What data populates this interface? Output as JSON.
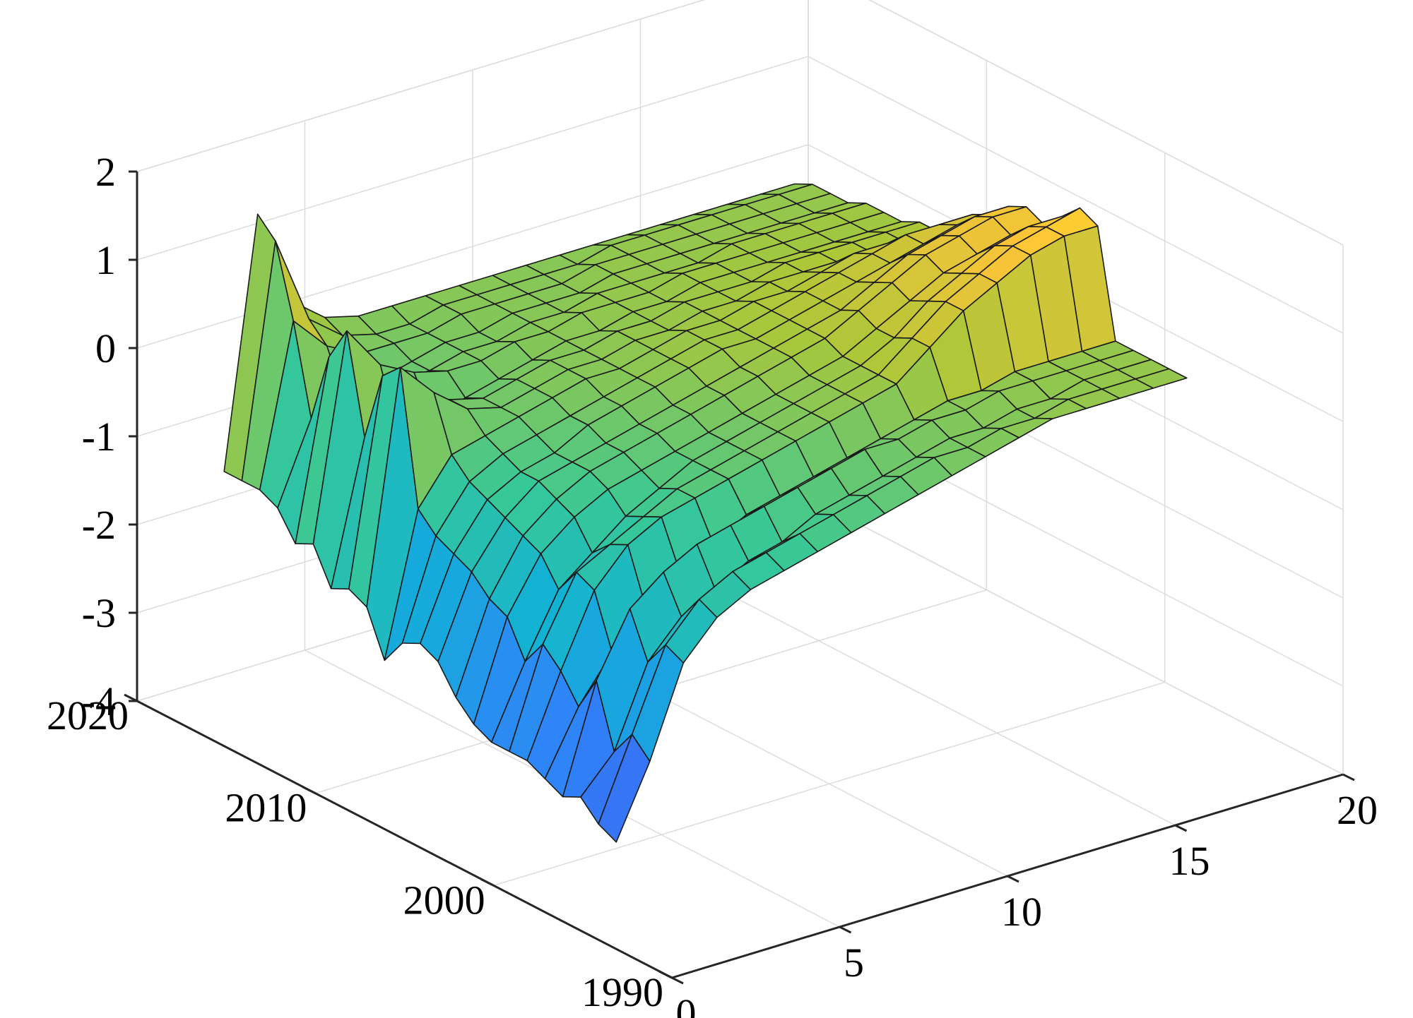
{
  "chart_data": {
    "type": "surface",
    "title": "",
    "xlabel": "",
    "ylabel": "",
    "zlabel": "",
    "xlim": [
      0,
      20
    ],
    "ylim": [
      1990,
      2020
    ],
    "zlim": [
      -4,
      2
    ],
    "grid": true,
    "colormap": "parula",
    "x_ticks": [
      "0",
      "5",
      "10",
      "15",
      "20"
    ],
    "y_ticks": [
      "1990",
      "2000",
      "2010",
      "2020"
    ],
    "z_ticks": [
      "-4",
      "-3",
      "-2",
      "-1",
      "0",
      "1",
      "2"
    ],
    "horizons": [
      1,
      2,
      3,
      4,
      5,
      6,
      7,
      8,
      9,
      10,
      11,
      12,
      13,
      14,
      15,
      16,
      17,
      18
    ],
    "years": [
      1995,
      1996,
      1997,
      1998,
      1999,
      2000,
      2001,
      2002,
      2003,
      2004,
      2005,
      2006,
      2007,
      2008,
      2009,
      2010,
      2011,
      2012,
      2013,
      2014,
      2015,
      2016,
      2017
    ],
    "z": [
      [
        -3.1,
        -2.3,
        -1.3,
        -0.9,
        -0.7,
        -0.6,
        -0.5,
        -0.4,
        -0.3,
        -0.2,
        -0.1,
        0.0,
        0.1,
        0.2,
        0.2,
        0.2,
        0.2,
        0.2
      ],
      [
        -3.0,
        -2.1,
        -1.2,
        -0.8,
        -0.6,
        -0.5,
        -0.4,
        -0.3,
        -0.2,
        -0.1,
        0.0,
        0.0,
        0.1,
        0.1,
        0.2,
        0.2,
        0.2,
        0.2
      ],
      [
        -2.8,
        -2.4,
        -1.5,
        -1.1,
        -0.9,
        -0.7,
        -0.6,
        -0.4,
        -0.3,
        -0.2,
        -0.1,
        0.0,
        0.0,
        0.1,
        0.1,
        0.2,
        0.2,
        0.2
      ],
      [
        -2.9,
        -1.7,
        -1.0,
        -0.7,
        -0.5,
        -0.4,
        -0.3,
        -0.2,
        -0.1,
        0.0,
        0.0,
        0.1,
        0.1,
        0.2,
        0.2,
        0.2,
        0.2,
        0.2
      ],
      [
        -2.8,
        -2.1,
        -1.6,
        -1.2,
        -0.9,
        -0.7,
        -0.5,
        -0.4,
        -0.3,
        -0.2,
        -0.1,
        0.0,
        0.1,
        0.1,
        0.2,
        0.2,
        0.2,
        0.2
      ],
      [
        -2.7,
        -1.8,
        -1.0,
        -0.6,
        -0.4,
        -0.3,
        -0.2,
        -0.1,
        0.0,
        0.1,
        0.2,
        0.3,
        0.6,
        0.9,
        1.1,
        1.3,
        1.4,
        1.4
      ],
      [
        -2.7,
        -1.6,
        -0.9,
        -0.7,
        -0.5,
        -0.3,
        -0.2,
        -0.1,
        0.0,
        0.1,
        0.2,
        0.3,
        0.6,
        0.9,
        1.1,
        1.3,
        1.4,
        1.5
      ],
      [
        -2.7,
        -1.9,
        -1.2,
        -0.9,
        -0.6,
        -0.4,
        -0.2,
        -0.1,
        0.0,
        0.1,
        0.2,
        0.3,
        0.5,
        0.8,
        1.0,
        1.2,
        1.3,
        1.3
      ],
      [
        -2.6,
        -1.5,
        -0.9,
        -0.6,
        -0.4,
        -0.3,
        -0.2,
        -0.1,
        0.0,
        0.1,
        0.2,
        0.3,
        0.5,
        0.7,
        0.9,
        1.0,
        1.1,
        1.1
      ],
      [
        -2.4,
        -1.4,
        -0.8,
        -0.5,
        -0.3,
        -0.2,
        -0.1,
        0.0,
        0.1,
        0.2,
        0.3,
        0.4,
        0.6,
        0.8,
        1.0,
        1.1,
        1.2,
        1.2
      ],
      [
        -2.1,
        -1.2,
        -0.7,
        -0.4,
        -0.3,
        -0.2,
        -0.1,
        0.0,
        0.1,
        0.2,
        0.3,
        0.4,
        0.5,
        0.7,
        0.9,
        1.0,
        1.1,
        1.1
      ],
      [
        -2.0,
        -1.1,
        -0.6,
        -0.4,
        -0.3,
        -0.1,
        0.0,
        0.1,
        0.2,
        0.3,
        0.3,
        0.4,
        0.5,
        0.6,
        0.7,
        0.8,
        0.9,
        0.9
      ],
      [
        -2.1,
        -1.0,
        -0.5,
        -0.3,
        -0.2,
        -0.1,
        0.0,
        0.1,
        0.2,
        0.3,
        0.3,
        0.4,
        0.5,
        0.6,
        0.7,
        0.8,
        0.8,
        0.8
      ],
      [
        -2.4,
        -0.8,
        -0.3,
        -0.2,
        -0.1,
        0.0,
        0.1,
        0.1,
        0.2,
        0.3,
        0.3,
        0.4,
        0.4,
        0.5,
        0.6,
        0.6,
        0.6,
        0.6
      ],
      [
        -1.9,
        0.7,
        0.3,
        0.0,
        -0.1,
        0.0,
        0.1,
        0.1,
        0.2,
        0.2,
        0.3,
        0.3,
        0.4,
        0.4,
        0.4,
        0.4,
        0.4,
        0.4
      ],
      [
        -1.8,
        0.5,
        0.2,
        0.0,
        -0.1,
        0.0,
        0.1,
        0.1,
        0.2,
        0.2,
        0.3,
        0.3,
        0.3,
        0.4,
        0.4,
        0.4,
        0.4,
        0.4
      ],
      [
        -1.9,
        -0.3,
        -0.4,
        -0.3,
        -0.2,
        -0.1,
        0.0,
        0.1,
        0.1,
        0.2,
        0.2,
        0.3,
        0.3,
        0.3,
        0.3,
        0.3,
        0.3,
        0.3
      ],
      [
        -1.5,
        0.8,
        0.3,
        0.1,
        0.0,
        0.0,
        0.1,
        0.1,
        0.2,
        0.2,
        0.2,
        0.3,
        0.3,
        0.3,
        0.3,
        0.3,
        0.3,
        0.3
      ],
      [
        -1.6,
        0.4,
        0.1,
        -0.1,
        -0.1,
        0.0,
        0.0,
        0.1,
        0.1,
        0.2,
        0.2,
        0.2,
        0.2,
        0.3,
        0.3,
        0.3,
        0.3,
        0.3
      ],
      [
        -1.3,
        -0.4,
        -0.3,
        -0.2,
        -0.1,
        0.0,
        0.0,
        0.1,
        0.1,
        0.1,
        0.2,
        0.2,
        0.2,
        0.2,
        0.2,
        0.2,
        0.2,
        0.2
      ],
      [
        -1.2,
        0.6,
        0.2,
        0.0,
        0.0,
        0.0,
        0.1,
        0.1,
        0.1,
        0.1,
        0.2,
        0.2,
        0.2,
        0.2,
        0.2,
        0.2,
        0.2,
        0.2
      ],
      [
        -1.2,
        1.4,
        0.4,
        0.1,
        0.0,
        0.0,
        0.1,
        0.1,
        0.1,
        0.1,
        0.1,
        0.2,
        0.2,
        0.2,
        0.2,
        0.2,
        0.2,
        0.2
      ],
      [
        -1.2,
        1.6,
        0.5,
        0.2,
        0.1,
        0.1,
        0.1,
        0.1,
        0.1,
        0.1,
        0.1,
        0.1,
        0.1,
        0.1,
        0.1,
        0.1,
        0.1,
        0.1
      ]
    ]
  }
}
